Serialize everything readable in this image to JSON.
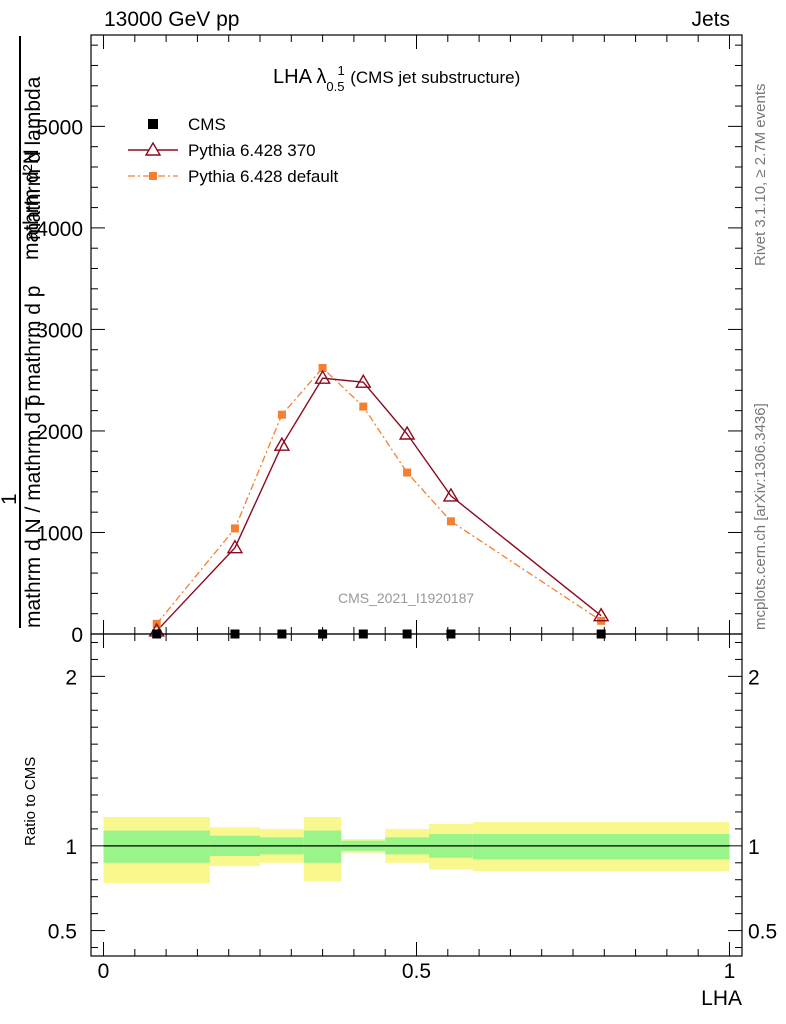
{
  "header": {
    "left": "13000 GeV pp",
    "right": "Jets"
  },
  "title": {
    "main": "LHA λ",
    "sub": "0.5",
    "sup": "1",
    "suffix": "(CMS jet substructure)"
  },
  "side": {
    "rivet": "Rivet 3.1.10, ≥ 2.7M events",
    "mcplots": "mcplots.cern.ch [arXiv:1306.3436]"
  },
  "watermark": "CMS_2021_I1920187",
  "ylabel_top": {
    "numerator": "mathrm d²N",
    "one": "1",
    "denom_a": "mathrm d N / mathrm d p",
    "denom_b": "T mathrm d p",
    "denom_c": "mathrm d lambda"
  },
  "ylabel_bottom": "Ratio to CMS",
  "xlabel": "LHA",
  "legend": [
    {
      "label": "CMS",
      "marker": "square",
      "color": "#000000"
    },
    {
      "label": "Pythia 6.428 370",
      "marker": "triangle",
      "color": "#8b0a1e"
    },
    {
      "label": "Pythia 6.428 default",
      "marker": "small-square",
      "color": "#f28030"
    }
  ],
  "chart_data": [
    {
      "type": "line",
      "title": "LHA λ^1_0.5 (CMS jet substructure)",
      "xlabel": "LHA",
      "ylabel": "1 / (mathrm d N / mathrm d p_T) mathrm d²N / (mathrm d p_T mathrm d lambda)",
      "xlim": [
        -0.02,
        1.02
      ],
      "ylim": [
        0,
        5900
      ],
      "xticks": [
        0,
        0.5,
        1
      ],
      "xtick_labels": [
        "0",
        "0.5",
        "1"
      ],
      "yticks": [
        0,
        1000,
        2000,
        3000,
        4000,
        5000
      ],
      "ytick_labels": [
        "0",
        "1000",
        "2000",
        "3000",
        "4000",
        "5000"
      ],
      "x": [
        0.085,
        0.21,
        0.285,
        0.35,
        0.415,
        0.485,
        0.555,
        0.795
      ],
      "series": [
        {
          "name": "CMS",
          "style": "markers",
          "color": "#000000",
          "values": [
            0,
            0,
            0,
            0,
            0,
            0,
            0,
            0
          ]
        },
        {
          "name": "Pythia 6.428 370",
          "style": "solid-triangle",
          "color": "#8b0a1e",
          "values": [
            30,
            850,
            1860,
            2520,
            2480,
            1970,
            1360,
            180
          ]
        },
        {
          "name": "Pythia 6.428 default",
          "style": "dashdot-square",
          "color": "#f28030",
          "values": [
            100,
            1040,
            2160,
            2620,
            2240,
            1590,
            1110,
            130
          ]
        }
      ]
    },
    {
      "type": "area",
      "title": "Ratio to CMS",
      "ylabel": "Ratio to CMS",
      "xlabel": "LHA",
      "xlim": [
        -0.02,
        1.02
      ],
      "ylim": [
        0.35,
        2.25
      ],
      "yticks": [
        0.5,
        1,
        2
      ],
      "ytick_labels": [
        "0.5",
        "1",
        "2"
      ],
      "bins": [
        {
          "x0": 0.0,
          "x1": 0.17,
          "stat_lo": 0.9,
          "stat_hi": 1.09,
          "tot_lo": 0.78,
          "tot_hi": 1.17
        },
        {
          "x0": 0.17,
          "x1": 0.25,
          "stat_lo": 0.94,
          "stat_hi": 1.06,
          "tot_lo": 0.88,
          "tot_hi": 1.11
        },
        {
          "x0": 0.25,
          "x1": 0.32,
          "stat_lo": 0.95,
          "stat_hi": 1.05,
          "tot_lo": 0.9,
          "tot_hi": 1.1
        },
        {
          "x0": 0.32,
          "x1": 0.38,
          "stat_lo": 0.9,
          "stat_hi": 1.09,
          "tot_lo": 0.79,
          "tot_hi": 1.17
        },
        {
          "x0": 0.38,
          "x1": 0.45,
          "stat_lo": 0.97,
          "stat_hi": 1.03,
          "tot_lo": 0.96,
          "tot_hi": 1.04
        },
        {
          "x0": 0.45,
          "x1": 0.52,
          "stat_lo": 0.95,
          "stat_hi": 1.05,
          "tot_lo": 0.9,
          "tot_hi": 1.1
        },
        {
          "x0": 0.52,
          "x1": 0.59,
          "stat_lo": 0.93,
          "stat_hi": 1.07,
          "tot_lo": 0.86,
          "tot_hi": 1.13
        },
        {
          "x0": 0.59,
          "x1": 1.0,
          "stat_lo": 0.92,
          "stat_hi": 1.07,
          "tot_lo": 0.85,
          "tot_hi": 1.14
        }
      ],
      "stat_color": "#99f58a",
      "total_color": "#f8f88e"
    }
  ]
}
